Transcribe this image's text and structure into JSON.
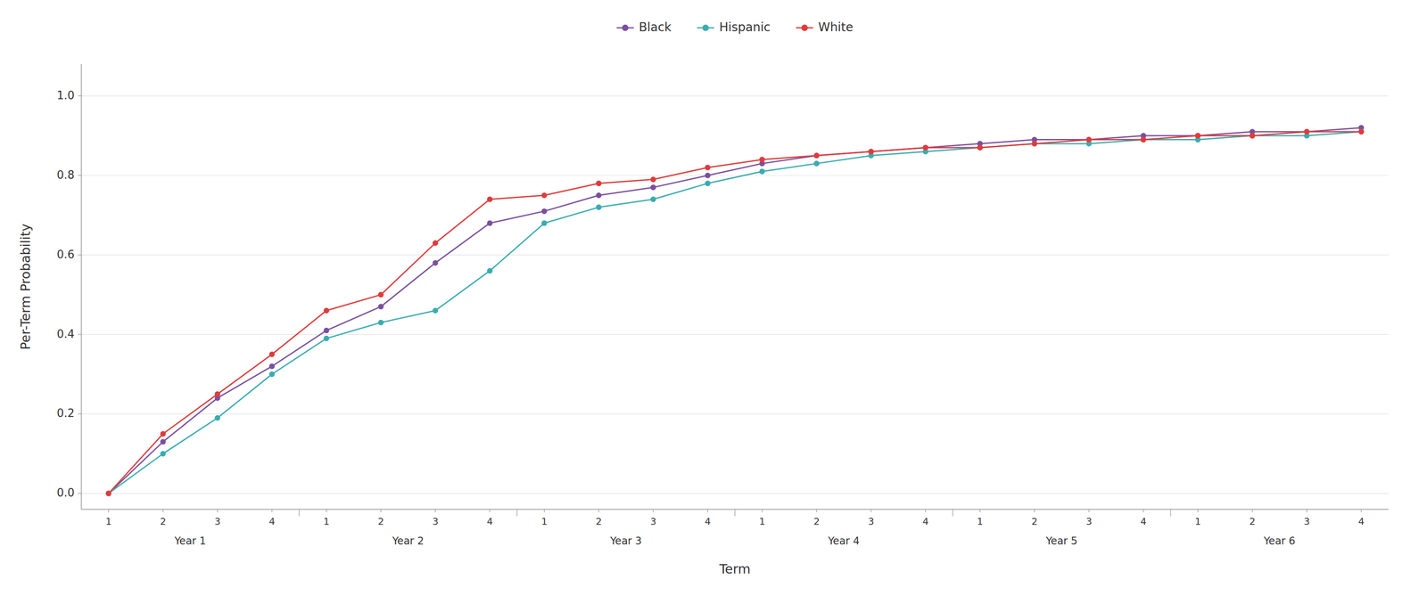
{
  "chart_data": {
    "type": "line",
    "xlabel": "Term",
    "ylabel": "Per-Term Probability",
    "categories": [
      "1",
      "2",
      "3",
      "4",
      "1",
      "2",
      "3",
      "4",
      "1",
      "2",
      "3",
      "4",
      "1",
      "2",
      "3",
      "4",
      "1",
      "2",
      "3",
      "4",
      "1",
      "2",
      "3",
      "4"
    ],
    "category_groups": [
      "Year 1",
      "Year 2",
      "Year 3",
      "Year 4",
      "Year 5",
      "Year 6"
    ],
    "series": [
      {
        "name": "Black",
        "color": "#7B4F9E",
        "marker": "circle",
        "line_style": "solid",
        "values": [
          0.0,
          0.13,
          0.24,
          0.32,
          0.41,
          0.47,
          0.58,
          0.68,
          0.71,
          0.75,
          0.77,
          0.8,
          0.83,
          0.85,
          0.86,
          0.87,
          0.88,
          0.89,
          0.89,
          0.9,
          0.9,
          0.91,
          0.91,
          0.92
        ]
      },
      {
        "name": "Hispanic",
        "color": "#3AACB0",
        "marker": "circle",
        "line_style": "solid",
        "values": [
          0.0,
          0.1,
          0.19,
          0.3,
          0.39,
          0.43,
          0.46,
          0.56,
          0.68,
          0.72,
          0.74,
          0.78,
          0.81,
          0.83,
          0.85,
          0.86,
          0.87,
          0.88,
          0.88,
          0.89,
          0.89,
          0.9,
          0.9,
          0.91
        ]
      },
      {
        "name": "White",
        "color": "#E03B3B",
        "marker": "circle",
        "line_style": "solid",
        "values": [
          0.0,
          0.15,
          0.25,
          0.35,
          0.46,
          0.5,
          0.63,
          0.74,
          0.75,
          0.78,
          0.79,
          0.82,
          0.84,
          0.85,
          0.86,
          0.87,
          0.87,
          0.88,
          0.89,
          0.89,
          0.9,
          0.9,
          0.91,
          0.91
        ]
      }
    ],
    "ylim": [
      -0.04,
      1.08
    ],
    "yticks": [
      {
        "value": 0,
        "label": "0.0"
      },
      0.2,
      0.4,
      0.6,
      0.8,
      {
        "value": 1,
        "label": "1.0"
      }
    ],
    "grid": true,
    "legend": "top"
  }
}
